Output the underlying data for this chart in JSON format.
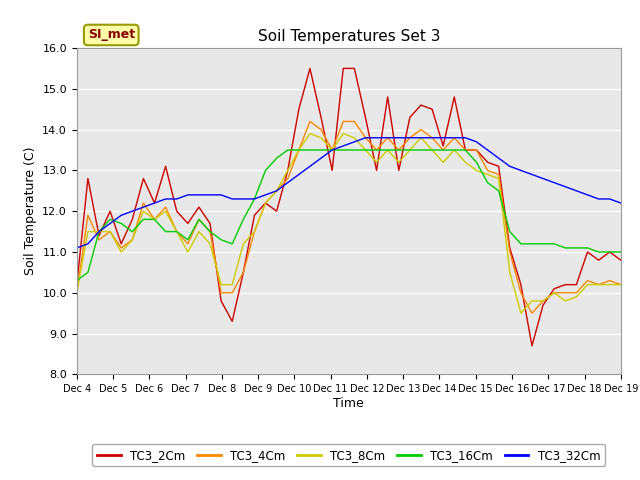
{
  "title": "Soil Temperatures Set 3",
  "xlabel": "Time",
  "ylabel": "Soil Temperature (C)",
  "ylim": [
    8.0,
    16.0
  ],
  "yticks": [
    8.0,
    9.0,
    10.0,
    11.0,
    12.0,
    13.0,
    14.0,
    15.0,
    16.0
  ],
  "xtick_labels": [
    "Dec 4",
    "Dec 5",
    "Dec 6",
    "Dec 7",
    "Dec 8",
    "Dec 9",
    "Dec 10",
    "Dec 11",
    "Dec 12",
    "Dec 13",
    "Dec 14",
    "Dec 15",
    "Dec 16",
    "Dec 17",
    "Dec 18",
    "Dec 19"
  ],
  "series_colors": {
    "TC3_2Cm": "#cc0000",
    "TC3_4Cm": "#ff8800",
    "TC3_8Cm": "#cccc00",
    "TC3_16Cm": "#00cc00",
    "TC3_32Cm": "#0000ff"
  },
  "legend_label": "SI_met",
  "figure_bg": "#ffffff",
  "plot_bg": "#e8e8e8",
  "TC3_2Cm": [
    10.2,
    12.8,
    11.4,
    12.0,
    11.2,
    11.8,
    12.8,
    12.2,
    13.1,
    12.0,
    11.7,
    12.1,
    11.7,
    9.8,
    9.3,
    10.5,
    11.9,
    12.2,
    12.0,
    13.0,
    14.5,
    15.5,
    14.3,
    13.0,
    15.5,
    15.5,
    14.3,
    13.0,
    14.8,
    13.0,
    14.3,
    14.6,
    14.5,
    13.6,
    14.8,
    13.5,
    13.5,
    13.2,
    13.1,
    11.1,
    10.2,
    8.7,
    9.7,
    10.1,
    10.2,
    10.2,
    11.0,
    10.8,
    11.0,
    10.8
  ],
  "TC3_4Cm": [
    10.0,
    11.9,
    11.3,
    11.5,
    11.1,
    11.3,
    12.2,
    11.8,
    12.1,
    11.5,
    11.2,
    11.8,
    11.5,
    10.0,
    10.0,
    10.5,
    11.5,
    12.2,
    12.5,
    12.8,
    13.5,
    14.2,
    14.0,
    13.5,
    14.2,
    14.2,
    13.8,
    13.5,
    13.8,
    13.5,
    13.8,
    14.0,
    13.8,
    13.5,
    13.8,
    13.5,
    13.5,
    13.0,
    12.9,
    11.0,
    10.0,
    9.5,
    9.8,
    10.0,
    10.0,
    10.0,
    10.3,
    10.2,
    10.3,
    10.2
  ],
  "TC3_8Cm": [
    10.0,
    11.5,
    11.5,
    11.5,
    11.0,
    11.3,
    12.0,
    11.8,
    12.0,
    11.5,
    11.0,
    11.5,
    11.2,
    10.2,
    10.2,
    11.2,
    11.5,
    12.2,
    12.5,
    13.0,
    13.5,
    13.9,
    13.8,
    13.5,
    13.9,
    13.8,
    13.5,
    13.2,
    13.5,
    13.2,
    13.5,
    13.8,
    13.5,
    13.2,
    13.5,
    13.2,
    13.0,
    12.9,
    12.8,
    10.5,
    9.5,
    9.8,
    9.8,
    10.0,
    9.8,
    9.9,
    10.2,
    10.2,
    10.2,
    10.2
  ],
  "TC3_16Cm": [
    10.3,
    10.5,
    11.5,
    11.8,
    11.7,
    11.5,
    11.8,
    11.8,
    11.5,
    11.5,
    11.3,
    11.8,
    11.5,
    11.3,
    11.2,
    11.8,
    12.3,
    13.0,
    13.3,
    13.5,
    13.5,
    13.5,
    13.5,
    13.5,
    13.5,
    13.5,
    13.5,
    13.5,
    13.5,
    13.5,
    13.5,
    13.5,
    13.5,
    13.5,
    13.5,
    13.5,
    13.2,
    12.7,
    12.5,
    11.5,
    11.2,
    11.2,
    11.2,
    11.2,
    11.1,
    11.1,
    11.1,
    11.0,
    11.0,
    11.0
  ],
  "TC3_32Cm": [
    11.1,
    11.2,
    11.5,
    11.7,
    11.9,
    12.0,
    12.1,
    12.2,
    12.3,
    12.3,
    12.4,
    12.4,
    12.4,
    12.4,
    12.3,
    12.3,
    12.3,
    12.4,
    12.5,
    12.7,
    12.9,
    13.1,
    13.3,
    13.5,
    13.6,
    13.7,
    13.8,
    13.8,
    13.8,
    13.8,
    13.8,
    13.8,
    13.8,
    13.8,
    13.8,
    13.8,
    13.7,
    13.5,
    13.3,
    13.1,
    13.0,
    12.9,
    12.8,
    12.7,
    12.6,
    12.5,
    12.4,
    12.3,
    12.3,
    12.2
  ]
}
